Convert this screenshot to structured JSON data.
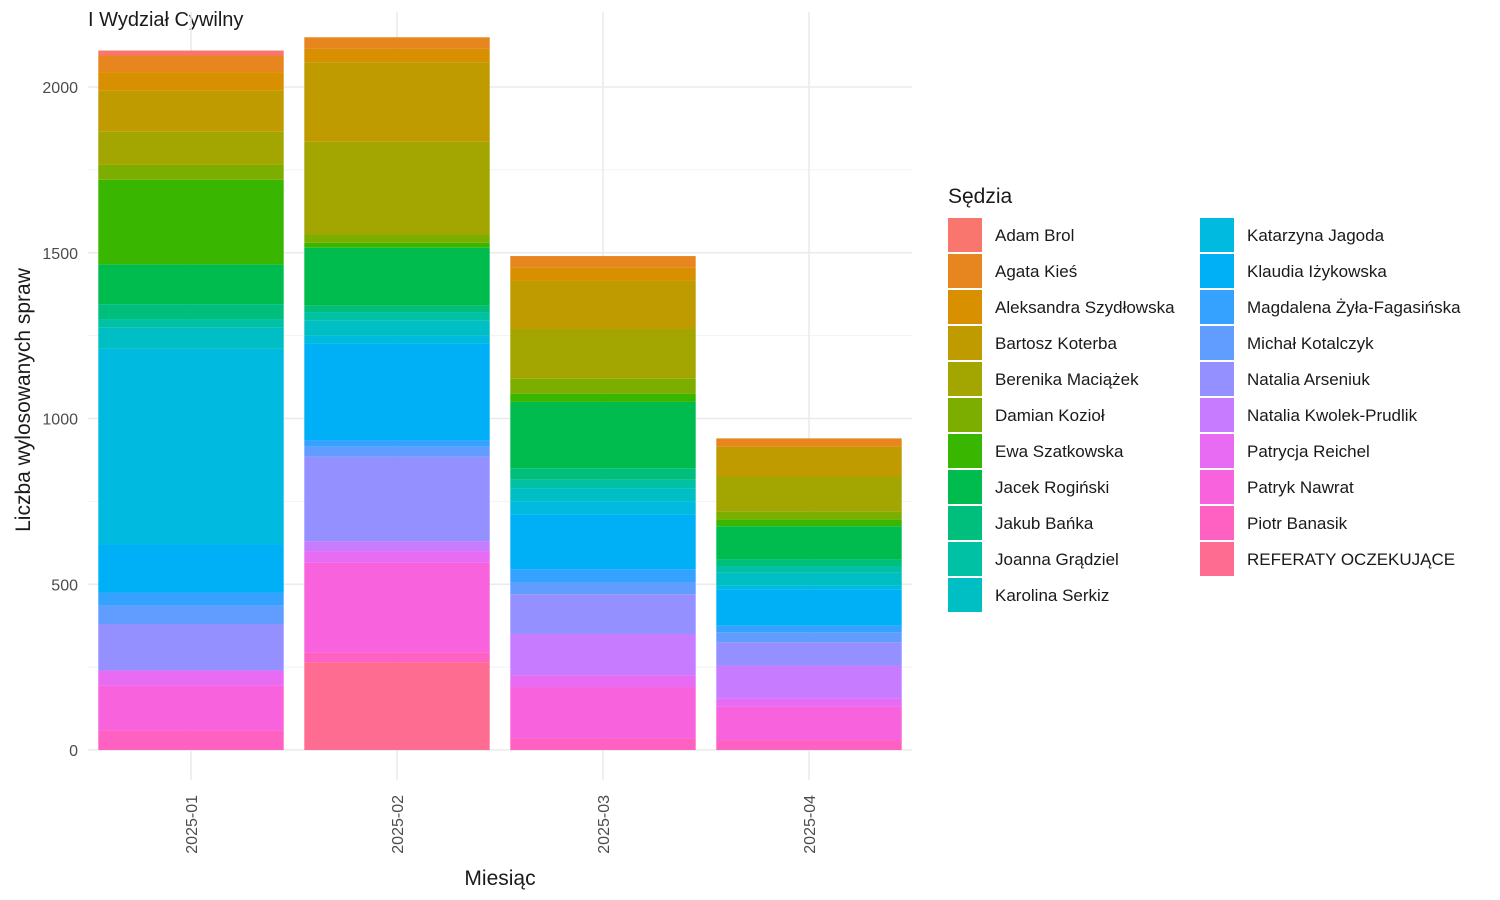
{
  "chart_data": {
    "type": "bar",
    "stacked": true,
    "title": "I Wydział Cywilny",
    "xlabel": "Miesiąc",
    "ylabel": "Liczba wylosowanych spraw",
    "categories": [
      "2025-01",
      "2025-02",
      "2025-03",
      "2025-04"
    ],
    "ylim": [
      0,
      2200
    ],
    "yticks": [
      0,
      500,
      1000,
      1500,
      2000
    ],
    "grid": true,
    "legend": {
      "title": "Sędzia",
      "position": "right",
      "columns": 2
    },
    "series": [
      {
        "name": "Adam Brol",
        "color": "#F8766D",
        "values": [
          15,
          0,
          0,
          0
        ]
      },
      {
        "name": "Agata Kieś",
        "color": "#E7851E",
        "values": [
          50,
          35,
          35,
          25
        ]
      },
      {
        "name": "Aleksandra Szydłowska",
        "color": "#D89000",
        "values": [
          55,
          40,
          40,
          0
        ]
      },
      {
        "name": "Bartosz Koterba",
        "color": "#C09B00",
        "values": [
          125,
          240,
          145,
          90
        ]
      },
      {
        "name": "Berenika Maciążek",
        "color": "#A3A500",
        "values": [
          100,
          280,
          150,
          105
        ]
      },
      {
        "name": "Damian Kozioł",
        "color": "#7CAE00",
        "values": [
          45,
          25,
          45,
          25
        ]
      },
      {
        "name": "Ewa Szatkowska",
        "color": "#39B600",
        "values": [
          255,
          15,
          25,
          20
        ]
      },
      {
        "name": "Jacek Rogiński",
        "color": "#00BB4E",
        "values": [
          120,
          175,
          200,
          100
        ]
      },
      {
        "name": "Jakub Bańka",
        "color": "#00BF7D",
        "values": [
          45,
          20,
          35,
          20
        ]
      },
      {
        "name": "Joanna Grądziel",
        "color": "#00C1A3",
        "values": [
          25,
          25,
          25,
          20
        ]
      },
      {
        "name": "Karolina Serkiz",
        "color": "#00BFC4",
        "values": [
          65,
          45,
          40,
          40
        ]
      },
      {
        "name": "Katarzyna Jagoda",
        "color": "#00BAE0",
        "values": [
          590,
          25,
          40,
          10
        ]
      },
      {
        "name": "Klaudia Iżykowska",
        "color": "#00B0F6",
        "values": [
          145,
          290,
          165,
          110
        ]
      },
      {
        "name": "Magdalena Żyła-Fagasińska",
        "color": "#35A2FF",
        "values": [
          40,
          20,
          40,
          20
        ]
      },
      {
        "name": "Michał Kotalczyk",
        "color": "#619CFF",
        "values": [
          55,
          30,
          35,
          30
        ]
      },
      {
        "name": "Natalia Arseniuk",
        "color": "#9590FF",
        "values": [
          140,
          255,
          120,
          70
        ]
      },
      {
        "name": "Natalia Kwolek-Prudlik",
        "color": "#C77CFF",
        "values": [
          0,
          30,
          125,
          100
        ]
      },
      {
        "name": "Patrycja Reichel",
        "color": "#E76BF3",
        "values": [
          45,
          35,
          35,
          25
        ]
      },
      {
        "name": "Patryk Nawrat",
        "color": "#F962DD",
        "values": [
          135,
          270,
          155,
          100
        ]
      },
      {
        "name": "Piotr Banasik",
        "color": "#FF61C3",
        "values": [
          60,
          30,
          35,
          30
        ]
      },
      {
        "name": "REFERATY OCZEKUJĄCE",
        "color": "#FF6C91",
        "values": [
          0,
          265,
          0,
          0
        ]
      }
    ]
  }
}
